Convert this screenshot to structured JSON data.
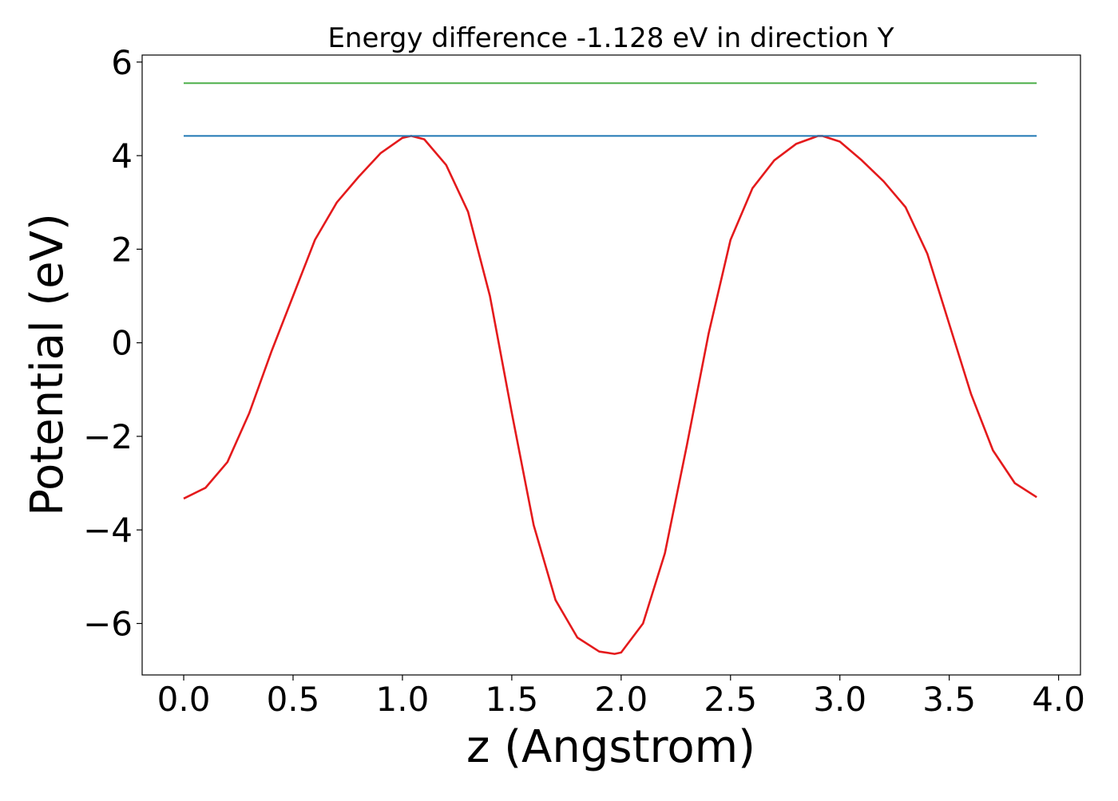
{
  "chart_data": {
    "type": "line",
    "title": "Energy difference -1.128 eV in direction Y",
    "xlabel": "z (Angstrom)",
    "ylabel": "Potential (eV)",
    "xlim": [
      -0.19,
      4.1
    ],
    "ylim": [
      -7.1,
      6.15
    ],
    "xticks": [
      0.0,
      0.5,
      1.0,
      1.5,
      2.0,
      2.5,
      3.0,
      3.5,
      4.0
    ],
    "xtick_labels": [
      "0.0",
      "0.5",
      "1.0",
      "1.5",
      "2.0",
      "2.5",
      "3.0",
      "3.5",
      "4.0"
    ],
    "yticks": [
      -6,
      -4,
      -2,
      0,
      2,
      4,
      6
    ],
    "ytick_labels": [
      "−6",
      "−4",
      "−2",
      "0",
      "2",
      "4",
      "6"
    ],
    "grid": false,
    "legend": "none",
    "series": [
      {
        "color": "#e41a1c",
        "x": [
          0.0,
          0.1,
          0.2,
          0.3,
          0.4,
          0.5,
          0.6,
          0.7,
          0.8,
          0.9,
          1.0,
          1.04,
          1.1,
          1.2,
          1.3,
          1.4,
          1.5,
          1.6,
          1.7,
          1.8,
          1.9,
          1.97,
          2.0,
          2.1,
          2.2,
          2.3,
          2.4,
          2.5,
          2.6,
          2.7,
          2.8,
          2.9,
          2.92,
          3.0,
          3.1,
          3.2,
          3.3,
          3.4,
          3.5,
          3.6,
          3.7,
          3.8,
          3.9
        ],
        "y": [
          -3.33,
          -3.1,
          -2.55,
          -1.5,
          -0.2,
          1.0,
          2.2,
          3.0,
          3.55,
          4.05,
          4.38,
          4.42,
          4.35,
          3.8,
          2.8,
          1.0,
          -1.5,
          -3.9,
          -5.5,
          -6.3,
          -6.6,
          -6.65,
          -6.62,
          -6.0,
          -4.5,
          -2.2,
          0.2,
          2.2,
          3.3,
          3.9,
          4.25,
          4.42,
          4.42,
          4.3,
          3.9,
          3.45,
          2.9,
          1.9,
          0.4,
          -1.1,
          -2.3,
          -3.0,
          -3.3
        ]
      },
      {
        "color": "#1f77b4",
        "x": [
          0.0,
          3.9
        ],
        "y": [
          4.42,
          4.42
        ]
      },
      {
        "color": "#4daf4a",
        "x": [
          0.0,
          3.9
        ],
        "y": [
          5.55,
          5.55
        ]
      }
    ]
  }
}
